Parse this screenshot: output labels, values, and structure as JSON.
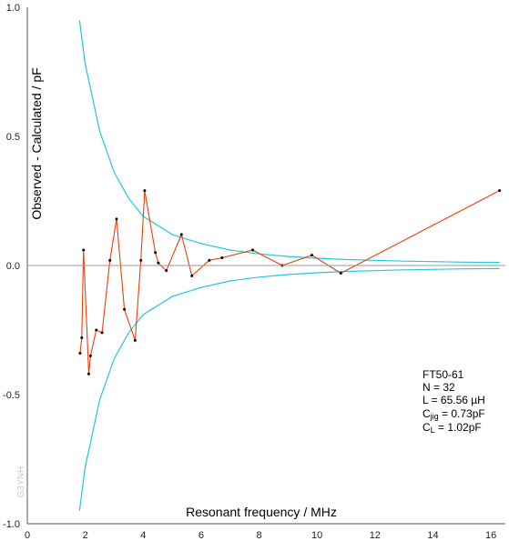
{
  "chart_data": {
    "type": "line",
    "xlabel": "Resonant frequency  /  MHz",
    "ylabel": "Observed - Calculated  / pF",
    "xlim": [
      0,
      16.5
    ],
    "ylim": [
      -1.0,
      1.0
    ],
    "x_ticks": [
      "0",
      "2",
      "4",
      "6",
      "8",
      "10",
      "12",
      "14",
      "16"
    ],
    "y_ticks": [
      "1.0",
      "0.5",
      "0.0",
      "-0.5",
      "-1.0"
    ],
    "grid": false,
    "series": [
      {
        "color": "#e8400c",
        "marker": "dot",
        "x": [
          1.82,
          1.88,
          1.94,
          2.12,
          2.18,
          2.38,
          2.58,
          2.85,
          3.08,
          3.35,
          3.72,
          3.92,
          4.05,
          4.42,
          4.52,
          4.8,
          5.32,
          5.68,
          6.28,
          6.72,
          7.78,
          8.8,
          9.82,
          10.82,
          16.3
        ],
        "y": [
          -0.34,
          -0.28,
          0.06,
          -0.42,
          -0.35,
          -0.25,
          -0.26,
          0.02,
          0.18,
          -0.17,
          -0.29,
          0.02,
          0.29,
          0.05,
          0.01,
          -0.02,
          0.12,
          -0.04,
          0.02,
          0.03,
          0.06,
          0.0,
          0.04,
          -0.03,
          0.29
        ]
      },
      {
        "color": "#22c8e0",
        "points": [
          [
            1.8,
            0.95
          ],
          [
            2.0,
            0.78
          ],
          [
            2.5,
            0.52
          ],
          [
            3.0,
            0.36
          ],
          [
            3.5,
            0.26
          ],
          [
            4.0,
            0.19
          ],
          [
            5.0,
            0.12
          ],
          [
            6.0,
            0.085
          ],
          [
            7.0,
            0.06
          ],
          [
            8.0,
            0.045
          ],
          [
            9.0,
            0.035
          ],
          [
            10.0,
            0.028
          ],
          [
            11.0,
            0.023
          ],
          [
            12.0,
            0.02
          ],
          [
            13.0,
            0.017
          ],
          [
            14.0,
            0.015
          ],
          [
            15.0,
            0.013
          ],
          [
            16.3,
            0.012
          ]
        ]
      },
      {
        "color": "#22c8e0",
        "points": [
          [
            1.8,
            -0.95
          ],
          [
            2.0,
            -0.78
          ],
          [
            2.5,
            -0.52
          ],
          [
            3.0,
            -0.36
          ],
          [
            3.5,
            -0.26
          ],
          [
            4.0,
            -0.19
          ],
          [
            5.0,
            -0.12
          ],
          [
            6.0,
            -0.085
          ],
          [
            7.0,
            -0.06
          ],
          [
            8.0,
            -0.045
          ],
          [
            9.0,
            -0.035
          ],
          [
            10.0,
            -0.028
          ],
          [
            11.0,
            -0.023
          ],
          [
            12.0,
            -0.02
          ],
          [
            13.0,
            -0.017
          ],
          [
            14.0,
            -0.015
          ],
          [
            15.0,
            -0.013
          ],
          [
            16.3,
            -0.012
          ]
        ]
      }
    ],
    "annotation": {
      "core": "FT50-61",
      "n": "N = 32",
      "l": "L = 65.56 µH",
      "cjig_c": "C",
      "cjig_sub": "jig",
      "cjig_val": " = 0.73pF",
      "cl_c": "C",
      "cl_sub": "L",
      "cl_val": " = 1.02pF"
    },
    "watermark": "G3YNH"
  }
}
